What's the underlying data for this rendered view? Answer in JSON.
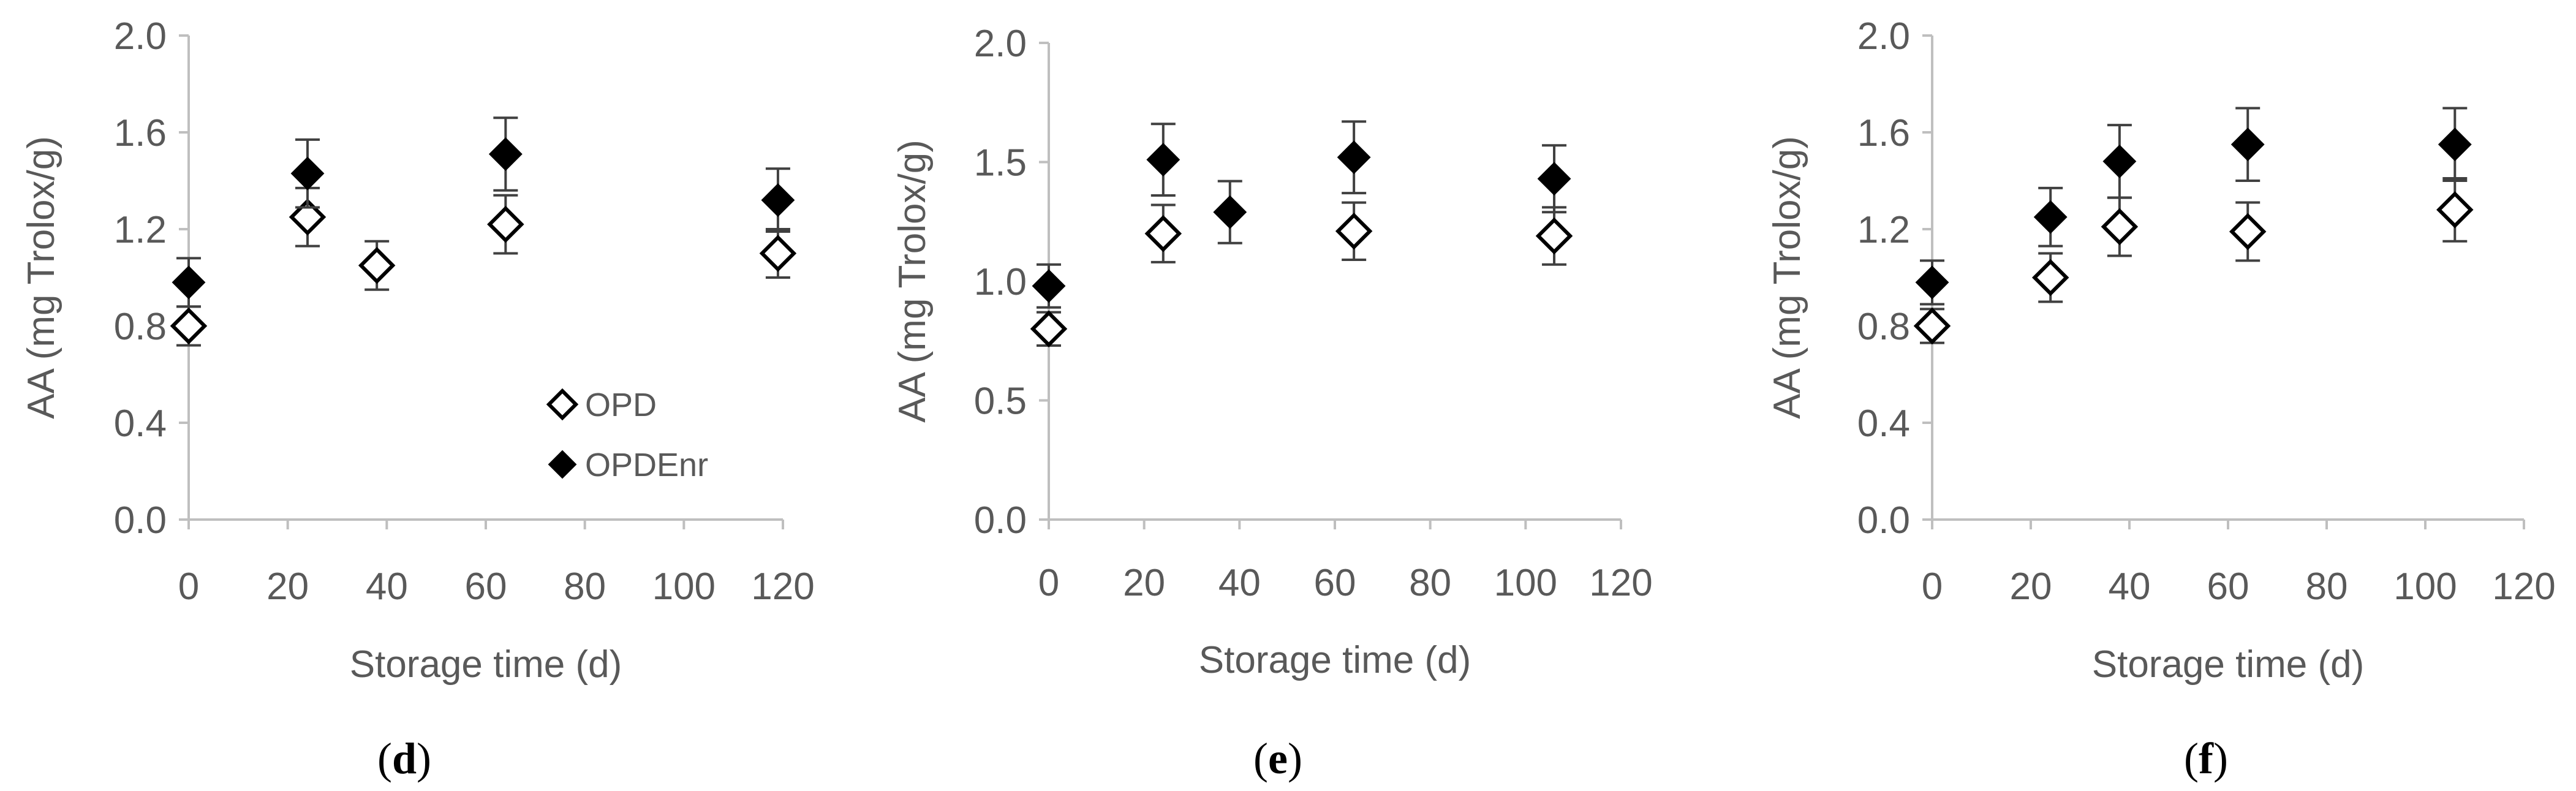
{
  "figure": {
    "legend": {
      "opd": "OPD",
      "opdenr": "OPDEnr"
    },
    "colors": {
      "axis": "#bfbfbf",
      "text": "#595959",
      "opd_marker": "#ffffff",
      "opdenr_marker": "#000000",
      "errorbar": "#404040"
    }
  },
  "chart_data": [
    {
      "type": "scatter",
      "panel_label": "(d)",
      "xlabel": "Storage time (d)",
      "ylabel": "AA (mg Trolox/g)",
      "xlim": [
        0,
        120
      ],
      "xticks": [
        "0",
        "20",
        "40",
        "60",
        "80",
        "100",
        "120"
      ],
      "ylim": [
        0,
        2.0
      ],
      "yticks": [
        "0.0",
        "0.4",
        "0.8",
        "1.2",
        "1.6",
        "2.0"
      ],
      "legend": "inside-bottom-right",
      "grid": false,
      "series": [
        {
          "name": "OPD",
          "marker": "open-diamond",
          "points": [
            {
              "x": 0,
              "y": 0.8,
              "err": 0.08
            },
            {
              "x": 24,
              "y": 1.25,
              "err": 0.12
            },
            {
              "x": 38,
              "y": 1.05,
              "err": 0.1
            },
            {
              "x": 64,
              "y": 1.22,
              "err": 0.12
            },
            {
              "x": 119,
              "y": 1.1,
              "err": 0.1
            }
          ]
        },
        {
          "name": "OPDEnr",
          "marker": "filled-diamond",
          "points": [
            {
              "x": 0,
              "y": 0.98,
              "err": 0.1
            },
            {
              "x": 24,
              "y": 1.43,
              "err": 0.14
            },
            {
              "x": 64,
              "y": 1.51,
              "err": 0.15
            },
            {
              "x": 119,
              "y": 1.32,
              "err": 0.13
            }
          ]
        }
      ]
    },
    {
      "type": "scatter",
      "panel_label": "(e)",
      "xlabel": "Storage time (d)",
      "ylabel": "AA (mg Trolox/g)",
      "xlim": [
        0,
        120
      ],
      "xticks": [
        "0",
        "20",
        "40",
        "60",
        "80",
        "100",
        "120"
      ],
      "ylim": [
        0,
        2.0
      ],
      "yticks": [
        "0.0",
        "0.5",
        "1.0",
        "1.5",
        "2.0"
      ],
      "grid": false,
      "series": [
        {
          "name": "OPD",
          "marker": "open-diamond",
          "points": [
            {
              "x": 0,
              "y": 0.8,
              "err": 0.07
            },
            {
              "x": 24,
              "y": 1.2,
              "err": 0.12
            },
            {
              "x": 64,
              "y": 1.21,
              "err": 0.12
            },
            {
              "x": 106,
              "y": 1.19,
              "err": 0.12
            }
          ]
        },
        {
          "name": "OPDEnr",
          "marker": "filled-diamond",
          "points": [
            {
              "x": 0,
              "y": 0.98,
              "err": 0.09
            },
            {
              "x": 24,
              "y": 1.51,
              "err": 0.15
            },
            {
              "x": 38,
              "y": 1.29,
              "err": 0.13
            },
            {
              "x": 64,
              "y": 1.52,
              "err": 0.15
            },
            {
              "x": 106,
              "y": 1.43,
              "err": 0.14
            }
          ]
        }
      ]
    },
    {
      "type": "scatter",
      "panel_label": "(f)",
      "xlabel": "Storage time (d)",
      "ylabel": "AA (mg Trolox/g)",
      "xlim": [
        0,
        120
      ],
      "xticks": [
        "0",
        "20",
        "40",
        "60",
        "80",
        "100",
        "120"
      ],
      "ylim": [
        0,
        2.0
      ],
      "yticks": [
        "0.0",
        "0.4",
        "0.8",
        "1.2",
        "1.6",
        "2.0"
      ],
      "grid": false,
      "series": [
        {
          "name": "OPD",
          "marker": "open-diamond",
          "points": [
            {
              "x": 0,
              "y": 0.8,
              "err": 0.07
            },
            {
              "x": 24,
              "y": 1.0,
              "err": 0.1
            },
            {
              "x": 38,
              "y": 1.21,
              "err": 0.12
            },
            {
              "x": 64,
              "y": 1.19,
              "err": 0.12
            },
            {
              "x": 106,
              "y": 1.28,
              "err": 0.13
            }
          ]
        },
        {
          "name": "OPDEnr",
          "marker": "filled-diamond",
          "points": [
            {
              "x": 0,
              "y": 0.98,
              "err": 0.09
            },
            {
              "x": 24,
              "y": 1.25,
              "err": 0.12
            },
            {
              "x": 38,
              "y": 1.48,
              "err": 0.15
            },
            {
              "x": 64,
              "y": 1.55,
              "err": 0.15
            },
            {
              "x": 106,
              "y": 1.55,
              "err": 0.15
            }
          ]
        }
      ]
    }
  ]
}
